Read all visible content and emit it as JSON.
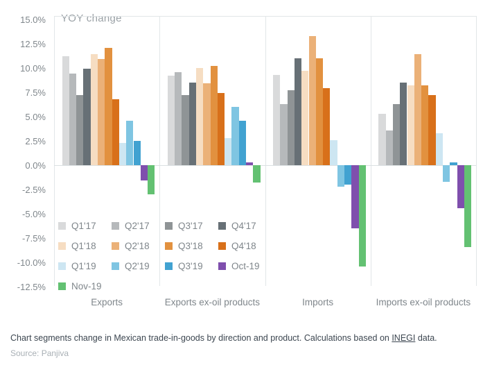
{
  "chart_data": {
    "type": "bar",
    "title": "YOY change",
    "unit": "%",
    "categories": [
      "Exports",
      "Exports ex-oil products",
      "Imports",
      "Imports ex-oil products"
    ],
    "series": [
      {
        "name": "Q1'17",
        "color": "#d9dadb",
        "values": [
          11.2,
          9.2,
          9.3,
          5.3
        ]
      },
      {
        "name": "Q2'17",
        "color": "#b6b9bb",
        "values": [
          9.4,
          9.6,
          6.3,
          3.6
        ]
      },
      {
        "name": "Q3'17",
        "color": "#8f9496",
        "values": [
          7.2,
          7.2,
          7.7,
          6.3
        ]
      },
      {
        "name": "Q4'17",
        "color": "#677076",
        "values": [
          9.9,
          8.5,
          11.0,
          8.5
        ]
      },
      {
        "name": "Q1'18",
        "color": "#f6ddc2",
        "values": [
          11.4,
          10.0,
          9.7,
          8.2
        ]
      },
      {
        "name": "Q2'18",
        "color": "#ebb178",
        "values": [
          10.9,
          8.4,
          13.3,
          11.4
        ]
      },
      {
        "name": "Q3'18",
        "color": "#e2913f",
        "values": [
          12.1,
          10.2,
          11.0,
          8.2
        ]
      },
      {
        "name": "Q4'18",
        "color": "#d8701a",
        "values": [
          6.8,
          7.4,
          7.9,
          7.2
        ]
      },
      {
        "name": "Q1'19",
        "color": "#cde6f2",
        "values": [
          2.3,
          2.8,
          2.6,
          3.3
        ]
      },
      {
        "name": "Q2'19",
        "color": "#7fc5e2",
        "values": [
          4.6,
          6.0,
          -2.2,
          -1.7
        ]
      },
      {
        "name": "Q3'19",
        "color": "#41a2d1",
        "values": [
          2.5,
          4.6,
          -2.0,
          0.3
        ]
      },
      {
        "name": "Oct-19",
        "color": "#7f4fad",
        "values": [
          -1.6,
          0.3,
          -6.5,
          -4.4
        ]
      },
      {
        "name": "Nov-19",
        "color": "#63c172",
        "values": [
          -3.0,
          -1.8,
          -10.4,
          -8.4
        ]
      }
    ],
    "y_ticks": [
      {
        "label": "15.0%",
        "value": 15.0
      },
      {
        "label": "12.5%",
        "value": 12.5
      },
      {
        "label": "10.0%",
        "value": 10.0
      },
      {
        "label": "7.5%",
        "value": 7.5
      },
      {
        "label": "5.0%",
        "value": 5.0
      },
      {
        "label": "2.5%",
        "value": 2.5
      },
      {
        "label": "0.0%",
        "value": 0.0
      },
      {
        "label": "-2.5%",
        "value": -2.5
      },
      {
        "label": "-5.0%",
        "value": -5.0
      },
      {
        "label": "-7.5%",
        "value": -7.5
      },
      {
        "label": "-10.0%",
        "value": -10.0
      },
      {
        "label": "-12.5%",
        "value": -12.5
      }
    ],
    "ylim": [
      -13.0,
      15.4
    ],
    "grid": {
      "zero_line": true,
      "panel_dividers": true,
      "top_border": true
    },
    "legend_position": "inside-bottom-left",
    "legend_columns": 4
  },
  "caption": {
    "pre": "Chart segments change in Mexican trade-in-goods by direction and product. Calculations based on ",
    "link": "INEGI",
    "post": " data."
  },
  "source": "Source: Panjiva"
}
